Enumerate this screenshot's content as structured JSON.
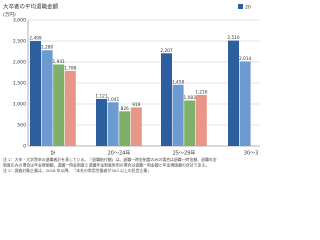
{
  "chart_data": {
    "type": "bar",
    "title": "大卒者の平均退職金額",
    "y_label": "(万円)",
    "categories": [
      "計",
      "20～24年",
      "25～29年",
      "30～3"
    ],
    "series": [
      {
        "name": "20",
        "color": "#2d5f9e",
        "values": [
          2499,
          1121,
          2207,
          2510
        ],
        "value_labels": [
          "2,499",
          "1,121",
          "2,207",
          "2,510"
        ]
      },
      {
        "color": "#6d9bd1",
        "values": [
          2280,
          1041,
          1458,
          2014
        ],
        "value_labels": [
          "2,280",
          "1,041",
          "1,458",
          "2,014"
        ]
      },
      {
        "color": "#7fb069",
        "values": [
          1941,
          826,
          1083,
          null
        ],
        "value_labels": [
          "1,941",
          "826",
          "1,083",
          null
        ]
      },
      {
        "color": "#e8968a",
        "values": [
          1788,
          919,
          1216,
          null
        ],
        "value_labels": [
          "1,788",
          "919",
          "1,216",
          null
        ]
      }
    ],
    "ylim": [
      0,
      3000
    ],
    "yticks": [
      0,
      {
        "value": 500,
        "label": "500"
      },
      {
        "value": 1000,
        "label": "1,000"
      },
      {
        "value": 1500,
        "label": "1,500"
      },
      {
        "value": 2000,
        "label": "2,000"
      },
      {
        "value": 2500,
        "label": "2,500"
      },
      {
        "value": 3000,
        "label": "3,000"
      }
    ],
    "grid": true,
    "notes": [
      "注 1：大卒・大学院卒の退職者計を表している。「退職給付額」は、退職一時金制度のみの場合は退職一時金額、退職年金",
      "制度のみの場合は年金現価額、退職一時金制度と退職年金制度併用の場合は退職一時金額と年金現価額の合計である。",
      "注 2：調査対象企業は、2018 年以降、「本社の常用労働者が30人以上の民営企業」"
    ]
  }
}
